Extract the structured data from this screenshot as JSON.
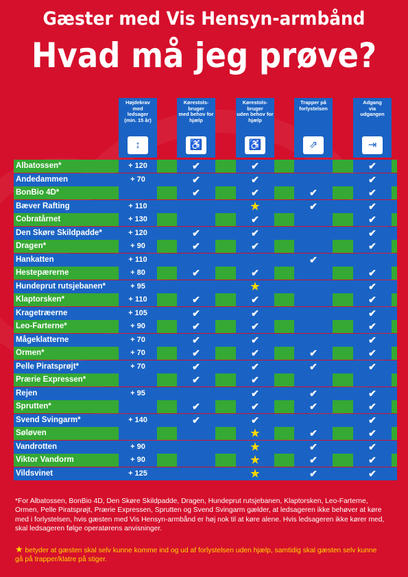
{
  "title_line1": "Gæster med Vis Hensyn-armbånd",
  "title_line2": "Hvad må jeg prøve?",
  "columns": [
    {
      "label": "Højdekrav\nmed\nledsager\n(min. 15 år)",
      "icon": "height-requirement-icon",
      "glyph": "↕"
    },
    {
      "label": "Kørestols-\nbruger\nmed behov for\nhjælp",
      "icon": "wheelchair-assisted-icon",
      "glyph": "♿"
    },
    {
      "label": "Kørestols-\nbruger\nuden behov for\nhjælp",
      "icon": "wheelchair-independent-icon",
      "glyph": "♿"
    },
    {
      "label": "Trapper på\nforlystelsen",
      "icon": "stairs-icon",
      "glyph": "⇗"
    },
    {
      "label": "Adgang\nvia\nudgangen",
      "icon": "exit-icon",
      "glyph": "⇥"
    }
  ],
  "rows": [
    {
      "name": "Albatossen*",
      "height": "+ 120",
      "c2": "check",
      "c3": "check",
      "c4": "",
      "c5": "check"
    },
    {
      "name": "Andedammen",
      "height": "+ 70",
      "c2": "check",
      "c3": "check",
      "c4": "",
      "c5": "check"
    },
    {
      "name": "BonBio 4D*",
      "height": "",
      "c2": "check",
      "c3": "check",
      "c4": "check",
      "c5": "check"
    },
    {
      "name": "Bæver Rafting",
      "height": "+ 110",
      "c2": "",
      "c3": "star",
      "c4": "check",
      "c5": "check"
    },
    {
      "name": "Cobratårnet",
      "height": "+ 130",
      "c2": "",
      "c3": "check",
      "c4": "",
      "c5": "check"
    },
    {
      "name": "Den Skøre Skildpadde*",
      "height": "+ 120",
      "c2": "check",
      "c3": "check",
      "c4": "",
      "c5": "check"
    },
    {
      "name": "Dragen*",
      "height": "+ 90",
      "c2": "check",
      "c3": "check",
      "c4": "",
      "c5": "check"
    },
    {
      "name": "Hankatten",
      "height": "+ 110",
      "c2": "",
      "c3": "",
      "c4": "check",
      "c5": ""
    },
    {
      "name": "Hestepærerne",
      "height": "+ 80",
      "c2": "check",
      "c3": "check",
      "c4": "",
      "c5": "check"
    },
    {
      "name": "Hundeprut rutsjebanen*",
      "height": "+ 95",
      "c2": "",
      "c3": "star",
      "c4": "",
      "c5": "check"
    },
    {
      "name": "Klaptorsken*",
      "height": "+ 110",
      "c2": "check",
      "c3": "check",
      "c4": "",
      "c5": "check"
    },
    {
      "name": "Kragetræerne",
      "height": "+ 105",
      "c2": "check",
      "c3": "check",
      "c4": "",
      "c5": "check"
    },
    {
      "name": "Leo-Farterne*",
      "height": "+ 90",
      "c2": "check",
      "c3": "check",
      "c4": "",
      "c5": "check"
    },
    {
      "name": "Mågeklatterne",
      "height": "+ 70",
      "c2": "check",
      "c3": "check",
      "c4": "",
      "c5": "check"
    },
    {
      "name": "Ormen*",
      "height": "+ 70",
      "c2": "check",
      "c3": "check",
      "c4": "check",
      "c5": "check"
    },
    {
      "name": "Pelle Piratsprøjt*",
      "height": "+ 70",
      "c2": "check",
      "c3": "check",
      "c4": "check",
      "c5": "check"
    },
    {
      "name": "Prærie Expressen*",
      "height": "",
      "c2": "check",
      "c3": "check",
      "c4": "",
      "c5": ""
    },
    {
      "name": "Rejen",
      "height": "+ 95",
      "c2": "",
      "c3": "check",
      "c4": "check",
      "c5": "check"
    },
    {
      "name": "Sprutten*",
      "height": "",
      "c2": "check",
      "c3": "check",
      "c4": "check",
      "c5": "check"
    },
    {
      "name": "Svend Svingarm*",
      "height": "+ 140",
      "c2": "check",
      "c3": "check",
      "c4": "",
      "c5": "check"
    },
    {
      "name": "Søløven",
      "height": "",
      "c2": "",
      "c3": "star",
      "c4": "check",
      "c5": "check"
    },
    {
      "name": "Vandrotten",
      "height": "+ 90",
      "c2": "",
      "c3": "star",
      "c4": "check",
      "c5": "check"
    },
    {
      "name": "Viktor Vandorm",
      "height": "+ 90",
      "c2": "",
      "c3": "star",
      "c4": "check",
      "c5": "check"
    },
    {
      "name": "Vildsvinet",
      "height": "+ 125",
      "c2": "",
      "c3": "star",
      "c4": "check",
      "c5": "check"
    }
  ],
  "footnote": "*For Albatossen, BonBio 4D, Den Skøre Skildpadde, Dragen, Hundeprut rutsjebanen, Klaptorsken, Leo-Farterne, Ormen, Pelle Piratsprøjt, Prærie Expressen, Sprutten og Svend Svingarm gælder, at ledsageren ikke behøver at køre med i forlystelsen, hvis gæsten med Vis Hensyn-armbånd er høj nok til at køre alene. Hvis ledsageren ikke kører med, skal ledsageren følge operatørens anvisninger.",
  "star_note": "betyder at gæsten skal selv kunne komme ind og ud af forlystelsen uden hjælp, samtidig skal gæsten selv kunne gå på trapper/klatre på stiger.",
  "colors": {
    "background": "#d5102c",
    "green": "#35a933",
    "blue": "#1a63c4",
    "star": "#ffd800"
  },
  "symbols": {
    "check": "✔",
    "star": "★"
  }
}
